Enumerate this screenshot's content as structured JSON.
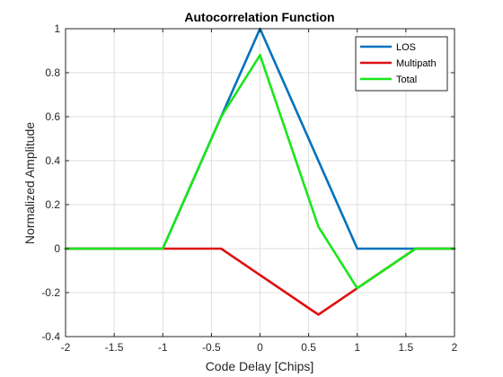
{
  "chart_data": {
    "type": "line",
    "title": "Autocorrelation Function",
    "xlabel": "Code Delay [Chips]",
    "ylabel": "Normalized Amplitude",
    "xlim": [
      -2,
      2
    ],
    "ylim": [
      -0.4,
      1
    ],
    "xticks": [
      -2,
      -1.5,
      -1,
      -0.5,
      0,
      0.5,
      1,
      1.5,
      2
    ],
    "xtick_labels": [
      "-2",
      "-1.5",
      "-1",
      "-0.5",
      "0",
      "0.5",
      "1",
      "1.5",
      "2"
    ],
    "yticks": [
      -0.4,
      -0.2,
      0,
      0.2,
      0.4,
      0.6,
      0.8,
      1
    ],
    "ytick_labels": [
      "-0.4",
      "-0.2",
      "0",
      "0.2",
      "0.4",
      "0.6",
      "0.8",
      "1"
    ],
    "grid": true,
    "legend_position": "top-right",
    "series": [
      {
        "name": "LOS",
        "color": "#0072BD",
        "x": [
          -2,
          -1,
          0,
          1,
          2
        ],
        "y": [
          0,
          0,
          1,
          0,
          0
        ]
      },
      {
        "name": "Multipath",
        "color": "#E01010",
        "x": [
          -2,
          -0.4,
          0.6,
          1.6,
          2
        ],
        "y": [
          0,
          0,
          -0.3,
          0,
          0
        ]
      },
      {
        "name": "Total",
        "color": "#1AE61A",
        "x": [
          -2,
          -1,
          -0.4,
          0,
          0.6,
          1,
          1.6,
          2
        ],
        "y": [
          0,
          0,
          0.6,
          0.88,
          0.1,
          -0.18,
          0,
          0
        ]
      }
    ]
  }
}
